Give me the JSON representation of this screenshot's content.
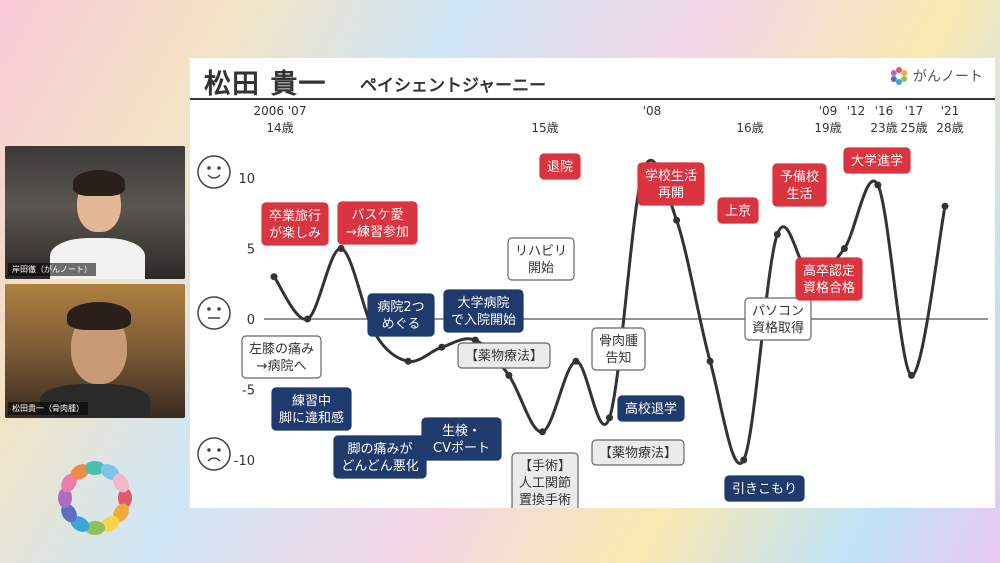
{
  "participants": [
    {
      "name": "岸田徹（がんノート）"
    },
    {
      "name": "松田貴一（骨肉腫）"
    }
  ],
  "slide": {
    "title": "松田 貴一",
    "subtitle": "ペイシェントジャーニー",
    "brand": "がんノート",
    "brand_icon": "flower-logo-icon",
    "face_icons": [
      "happy-face-icon",
      "neutral-face-icon",
      "sad-face-icon"
    ]
  },
  "chart_data": {
    "type": "line",
    "title": "",
    "xlabel": "",
    "ylabel": "",
    "ylim": [
      -12,
      12
    ],
    "yticks": [
      10,
      5,
      0,
      -5,
      -10
    ],
    "time_labels": [
      {
        "year": "2006 '07",
        "age": "14歳"
      },
      {
        "year": "",
        "age": "15歳"
      },
      {
        "year": "'08",
        "age": ""
      },
      {
        "year": "",
        "age": "16歳"
      },
      {
        "year": "'09",
        "age": "19歳"
      },
      {
        "year": "'12",
        "age": ""
      },
      {
        "year": "'16",
        "age": "23歳"
      },
      {
        "year": "'17",
        "age": "25歳"
      },
      {
        "year": "'21",
        "age": "28歳"
      }
    ],
    "series": [
      {
        "values": [
          3,
          0,
          5,
          -1,
          -3,
          -2,
          -1.5,
          -4,
          -8,
          -3,
          -7,
          10.5,
          7,
          -3,
          -10,
          6,
          3,
          5,
          9.5,
          -4,
          8
        ]
      }
    ],
    "annotations": [
      {
        "text": "卒業旅行\nが楽しみ",
        "style": "positive"
      },
      {
        "text": "バスケ愛\n→練習参加",
        "style": "positive"
      },
      {
        "text": "左膝の痛み\n→病院へ",
        "style": "neutral"
      },
      {
        "text": "練習中\n脚に違和感",
        "style": "negative"
      },
      {
        "text": "病院2つ\nめぐる",
        "style": "negative"
      },
      {
        "text": "脚の痛みが\nどんどん悪化",
        "style": "negative"
      },
      {
        "text": "大学病院\nで入院開始",
        "style": "negative"
      },
      {
        "text": "【薬物療法】",
        "style": "treatment"
      },
      {
        "text": "生検・\nCVポート",
        "style": "negative"
      },
      {
        "text": "リハビリ\n開始",
        "style": "neutral"
      },
      {
        "text": "【手術】\n人工関節\n置換手術",
        "style": "treatment"
      },
      {
        "text": "退院",
        "style": "positive"
      },
      {
        "text": "学校生活\n再開",
        "style": "positive"
      },
      {
        "text": "骨肉腫\n告知",
        "style": "neutral"
      },
      {
        "text": "【薬物療法】",
        "style": "treatment"
      },
      {
        "text": "高校退学",
        "style": "negative"
      },
      {
        "text": "引きこもり",
        "style": "negative"
      },
      {
        "text": "上京",
        "style": "positive"
      },
      {
        "text": "予備校\n生活",
        "style": "positive"
      },
      {
        "text": "パソコン\n資格取得",
        "style": "neutral"
      },
      {
        "text": "高卒認定\n資格合格",
        "style": "positive"
      },
      {
        "text": "大学進学",
        "style": "positive"
      }
    ],
    "colors": {
      "positive": "#d9343f",
      "negative": "#1f3a6d",
      "neutral": "#ffffff",
      "treatment": "#ebebeb",
      "line": "#333333"
    }
  }
}
